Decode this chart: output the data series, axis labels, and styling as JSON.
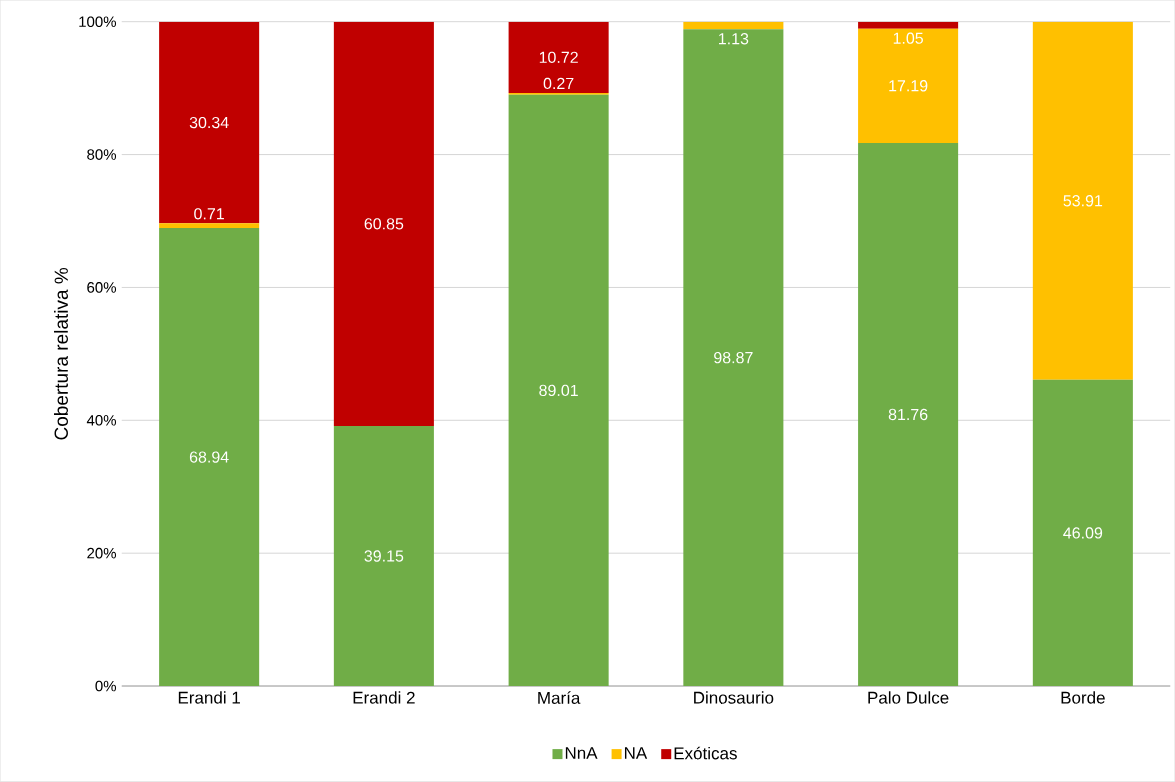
{
  "chart_data": {
    "type": "bar",
    "stacked": true,
    "ylabel": "Cobertura relativa %",
    "categories": [
      "Erandi 1",
      "Erandi 2",
      "María",
      "Dinosaurio",
      "Palo Dulce",
      "Borde"
    ],
    "series": [
      {
        "name": "NnA",
        "color": "#70ad47",
        "values": [
          68.94,
          39.15,
          89.01,
          98.87,
          81.76,
          46.09
        ],
        "value_labels": [
          "68.94",
          "39.15",
          "89.01",
          "98.87",
          "81.76",
          "46.09"
        ]
      },
      {
        "name": "NA",
        "color": "#ffc000",
        "values": [
          0.71,
          0,
          0.27,
          1.13,
          17.19,
          53.91
        ],
        "value_labels": [
          "0.71",
          null,
          "0.27",
          "1.13",
          "17.19",
          "53.91"
        ]
      },
      {
        "name": "Exóticas",
        "color": "#c00000",
        "values": [
          30.34,
          60.85,
          10.72,
          0,
          1.05,
          0
        ],
        "value_labels": [
          "30.34",
          "60.85",
          "10.72",
          null,
          "1.05",
          null
        ]
      }
    ],
    "ylim": [
      0,
      100
    ],
    "yticks": [
      {
        "value": 0,
        "label": "0%"
      },
      {
        "value": 20,
        "label": "20%"
      },
      {
        "value": 40,
        "label": "40%"
      },
      {
        "value": 60,
        "label": "60%"
      },
      {
        "value": 80,
        "label": "80%"
      },
      {
        "value": 100,
        "label": "100%"
      }
    ],
    "grid": "y",
    "legend": "bottom"
  }
}
